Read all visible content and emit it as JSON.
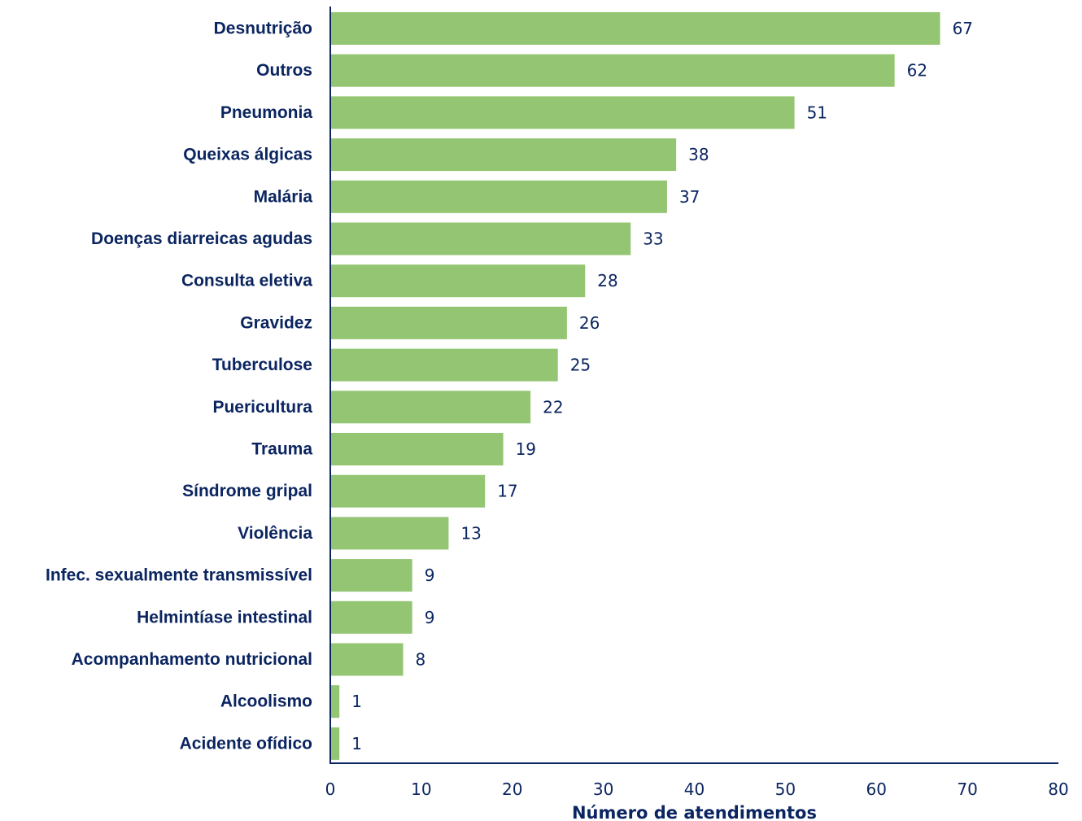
{
  "chart_data": {
    "type": "bar",
    "orientation": "horizontal",
    "categories": [
      "Desnutrição",
      "Outros",
      "Pneumonia",
      "Queixas álgicas",
      "Malária",
      "Doenças diarreicas agudas",
      "Consulta eletiva",
      "Gravidez",
      "Tuberculose",
      "Puericultura",
      "Trauma",
      "Síndrome gripal",
      "Violência",
      "Infec. sexualmente transmissível",
      "Helmintíase intestinal",
      "Acompanhamento nutricional",
      "Alcoolismo",
      "Acidente ofídico"
    ],
    "values": [
      67,
      62,
      51,
      38,
      37,
      33,
      28,
      26,
      25,
      22,
      19,
      17,
      13,
      9,
      9,
      8,
      1,
      1
    ],
    "title": "",
    "xlabel": "Número de atendimentos",
    "ylabel": "",
    "xlim": [
      0,
      80
    ],
    "xticks": [
      0,
      10,
      20,
      30,
      40,
      50,
      60,
      70,
      80
    ],
    "grid": false,
    "data_labels": true,
    "colors": {
      "bar": "#93c572",
      "axis": "#0b2560",
      "text": "#0b2560"
    }
  }
}
